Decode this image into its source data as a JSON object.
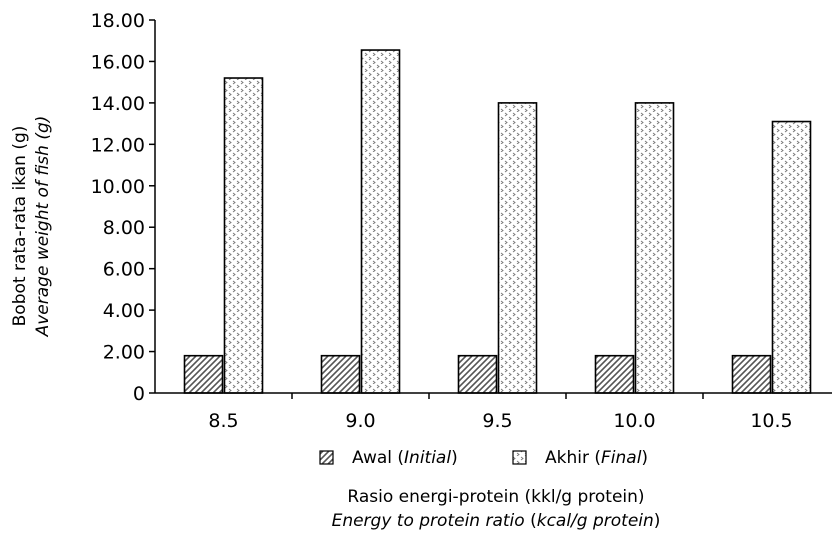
{
  "chart_data": {
    "type": "bar",
    "categories": [
      "8.5",
      "9.0",
      "9.5",
      "10.0",
      "10.5"
    ],
    "series": [
      {
        "name": "Awal",
        "name_translation": "Initial",
        "values": [
          1.8,
          1.8,
          1.8,
          1.8,
          1.8
        ]
      },
      {
        "name": "Akhir",
        "name_translation": "Final",
        "values": [
          15.2,
          16.55,
          14.0,
          14.0,
          13.1
        ]
      }
    ],
    "yticks": [
      "0",
      "2.00",
      "4.00",
      "6.00",
      "8.00",
      "10.00",
      "12.00",
      "14.00",
      "16.00",
      "18.00"
    ],
    "ylim": [
      0,
      18
    ],
    "ylabel": "Bobot rata-rata ikan (g)",
    "ylabel_translation": "Average weight of fish (g)",
    "xlabel": "Rasio energi-protein (kkl/g protein)",
    "xlabel_translation": "Energy to protein ratio (kcal/g protein)",
    "grid": false,
    "legend_position": "bottom"
  },
  "legend": {
    "initial_label": "Awal (",
    "initial_italic": "Initial",
    "initial_close": ")",
    "final_label": "Akhir (",
    "final_italic": "Final",
    "final_close": ")"
  },
  "xtitle": {
    "line1": "Rasio energi-protein (kkl/g protein)",
    "line2_italic": "Energy to protein ratio",
    "line2_plain_open": " (",
    "line2_unit_italic": "kcal/g protein",
    "line2_plain_close": ")"
  },
  "ytitle": {
    "line1": "Bobot rata-rata ikan (g)",
    "line2": "Average weight of fish (g)"
  }
}
